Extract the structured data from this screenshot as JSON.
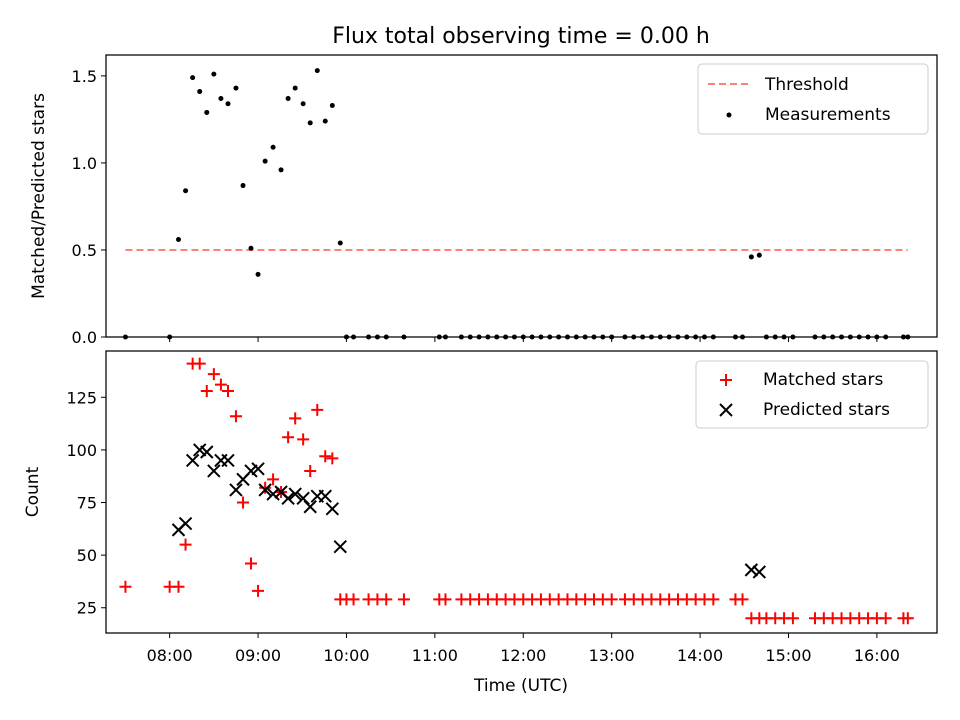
{
  "chart_data": [
    {
      "type": "scatter",
      "title": "Flux total observing time = 0.00 h",
      "xlabel": "",
      "ylabel": "Matched/Predicted stars",
      "xlim": [
        7.28,
        16.68
      ],
      "ylim": [
        0,
        1.62
      ],
      "yticks": [
        "0.0",
        "0.5",
        "1.0",
        "1.5"
      ],
      "yticks_values": [
        0,
        0.5,
        1.0,
        1.5
      ],
      "legend_position": "upper right",
      "threshold": {
        "name": "Threshold",
        "value": 0.5,
        "x_range": [
          7.5,
          16.35
        ],
        "color": "#ff7f7f"
      },
      "series": [
        {
          "name": "Measurements",
          "color": "#000000",
          "x": [
            7.5,
            8.0,
            8.1,
            8.18,
            8.26,
            8.34,
            8.42,
            8.5,
            8.58,
            8.66,
            8.75,
            8.83,
            8.92,
            9.0,
            9.08,
            9.17,
            9.26,
            9.34,
            9.42,
            9.51,
            9.59,
            9.67,
            9.76,
            9.84,
            9.93,
            10.0,
            10.08,
            10.25,
            10.35,
            10.45,
            10.65,
            11.05,
            11.12,
            11.3,
            11.4,
            11.5,
            11.6,
            11.7,
            11.8,
            11.9,
            12.0,
            12.1,
            12.2,
            12.3,
            12.4,
            12.5,
            12.6,
            12.7,
            12.8,
            12.9,
            13.0,
            13.15,
            13.25,
            13.35,
            13.45,
            13.55,
            13.65,
            13.75,
            13.85,
            13.95,
            14.05,
            14.15,
            14.4,
            14.48,
            14.58,
            14.67,
            14.75,
            14.85,
            14.95,
            15.05,
            15.3,
            15.4,
            15.5,
            15.6,
            15.7,
            15.8,
            15.9,
            16.0,
            16.1,
            16.3,
            16.35
          ],
          "y": [
            0,
            0,
            0.56,
            0.84,
            1.49,
            1.41,
            1.29,
            1.51,
            1.37,
            1.34,
            1.43,
            0.87,
            0.51,
            0.36,
            1.01,
            1.09,
            0.96,
            1.37,
            1.43,
            1.34,
            1.23,
            1.53,
            1.24,
            1.33,
            0.54,
            0,
            0,
            0,
            0,
            0,
            0,
            0,
            0,
            0,
            0,
            0,
            0,
            0,
            0,
            0,
            0,
            0,
            0,
            0,
            0,
            0,
            0,
            0,
            0,
            0,
            0,
            0,
            0,
            0,
            0,
            0,
            0,
            0,
            0,
            0,
            0,
            0,
            0,
            0,
            0.46,
            0.47,
            0,
            0,
            0,
            0,
            0,
            0,
            0,
            0,
            0,
            0,
            0,
            0,
            0,
            0,
            0
          ]
        }
      ]
    },
    {
      "type": "scatter",
      "title": "",
      "xlabel": "Time (UTC)",
      "ylabel": "Count",
      "xlim": [
        7.28,
        16.68
      ],
      "ylim": [
        13,
        147
      ],
      "yticks": [
        "25",
        "50",
        "75",
        "100",
        "125"
      ],
      "yticks_values": [
        25,
        50,
        75,
        100,
        125
      ],
      "xticks": [
        "08:00",
        "09:00",
        "10:00",
        "11:00",
        "12:00",
        "13:00",
        "14:00",
        "15:00",
        "16:00"
      ],
      "xticks_values": [
        8,
        9,
        10,
        11,
        12,
        13,
        14,
        15,
        16
      ],
      "legend_position": "upper right",
      "series": [
        {
          "name": "Matched stars",
          "marker": "plus",
          "color": "#ff0000",
          "x": [
            7.5,
            8.0,
            8.1,
            8.18,
            8.26,
            8.34,
            8.42,
            8.5,
            8.58,
            8.66,
            8.75,
            8.83,
            8.92,
            9.0,
            9.08,
            9.17,
            9.26,
            9.34,
            9.42,
            9.51,
            9.59,
            9.67,
            9.76,
            9.84,
            9.93,
            10.0,
            10.08,
            10.25,
            10.35,
            10.45,
            10.65,
            11.05,
            11.12,
            11.3,
            11.4,
            11.5,
            11.6,
            11.7,
            11.8,
            11.9,
            12.0,
            12.1,
            12.2,
            12.3,
            12.4,
            12.5,
            12.6,
            12.7,
            12.8,
            12.9,
            13.0,
            13.15,
            13.25,
            13.35,
            13.45,
            13.55,
            13.65,
            13.75,
            13.85,
            13.95,
            14.05,
            14.15,
            14.4,
            14.48,
            14.58,
            14.67,
            14.75,
            14.85,
            14.95,
            15.05,
            15.3,
            15.4,
            15.5,
            15.6,
            15.7,
            15.8,
            15.9,
            16.0,
            16.1,
            16.3,
            16.35
          ],
          "y": [
            35,
            35,
            35,
            55,
            141,
            141,
            128,
            136,
            131,
            128,
            116,
            75,
            46,
            33,
            82,
            86,
            80,
            106,
            115,
            105,
            90,
            119,
            97,
            96,
            29,
            29,
            29,
            29,
            29,
            29,
            29,
            29,
            29,
            29,
            29,
            29,
            29,
            29,
            29,
            29,
            29,
            29,
            29,
            29,
            29,
            29,
            29,
            29,
            29,
            29,
            29,
            29,
            29,
            29,
            29,
            29,
            29,
            29,
            29,
            29,
            29,
            29,
            29,
            29,
            20,
            20,
            20,
            20,
            20,
            20,
            20,
            20,
            20,
            20,
            20,
            20,
            20,
            20,
            20,
            20,
            20
          ]
        },
        {
          "name": "Predicted stars",
          "marker": "x",
          "color": "#000000",
          "x": [
            8.1,
            8.18,
            8.26,
            8.34,
            8.42,
            8.5,
            8.58,
            8.66,
            8.75,
            8.83,
            8.92,
            9.0,
            9.08,
            9.17,
            9.26,
            9.34,
            9.42,
            9.51,
            9.59,
            9.67,
            9.76,
            9.84,
            9.93,
            14.58,
            14.67
          ],
          "y": [
            62,
            65,
            95,
            100,
            99,
            90,
            95,
            95,
            81,
            86,
            90,
            91,
            81,
            79,
            80,
            77,
            79,
            77,
            73,
            78,
            78,
            72,
            54,
            43,
            42
          ]
        }
      ]
    }
  ]
}
